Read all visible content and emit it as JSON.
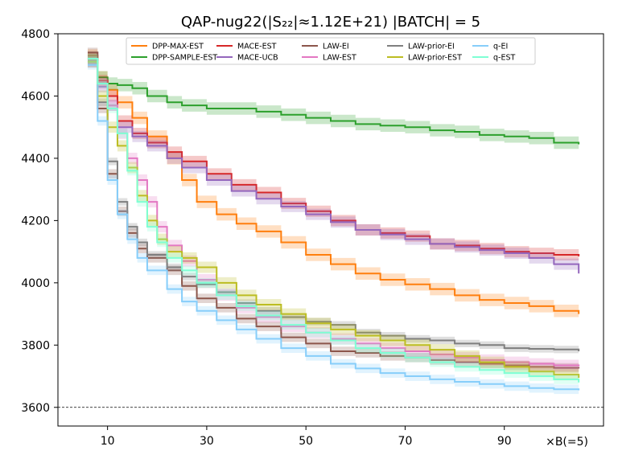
{
  "chart_data": {
    "type": "line",
    "title": "QAP-nug22(|S₂₂|≈1.12E+21) |BATCH| = 5",
    "xlabel": "",
    "ylabel": "",
    "x_unit_label": "×B(=5)",
    "xlim": [
      0,
      110
    ],
    "ylim": [
      3540,
      4800
    ],
    "xticks": [
      10,
      30,
      50,
      70,
      90
    ],
    "yticks": [
      3600,
      3800,
      4000,
      4200,
      4400,
      4600,
      4800
    ],
    "reference_line": 3600,
    "legend_position": "top",
    "series": [
      {
        "name": "DPP-MAX-EST",
        "color": "#ff7f0e",
        "x": [
          6,
          8,
          10,
          12,
          15,
          18,
          22,
          25,
          28,
          32,
          36,
          40,
          45,
          50,
          55,
          60,
          65,
          70,
          75,
          80,
          85,
          90,
          95,
          100,
          105
        ],
        "y": [
          4730,
          4660,
          4620,
          4580,
          4530,
          4470,
          4400,
          4330,
          4260,
          4220,
          4190,
          4165,
          4130,
          4090,
          4060,
          4030,
          4010,
          3995,
          3980,
          3960,
          3945,
          3935,
          3925,
          3910,
          3900
        ],
        "band": 20
      },
      {
        "name": "DPP-SAMPLE-EST",
        "color": "#2ca02c",
        "x": [
          6,
          8,
          10,
          12,
          15,
          18,
          22,
          25,
          30,
          40,
          45,
          50,
          55,
          60,
          65,
          70,
          75,
          80,
          85,
          90,
          95,
          100,
          105
        ],
        "y": [
          4720,
          4660,
          4640,
          4635,
          4625,
          4600,
          4580,
          4570,
          4560,
          4550,
          4540,
          4530,
          4520,
          4510,
          4505,
          4500,
          4490,
          4485,
          4475,
          4470,
          4465,
          4450,
          4445
        ],
        "band": 20
      },
      {
        "name": "MACE-EST",
        "color": "#d62728",
        "x": [
          6,
          8,
          10,
          12,
          15,
          18,
          22,
          25,
          30,
          35,
          40,
          45,
          50,
          55,
          60,
          65,
          70,
          75,
          80,
          85,
          90,
          95,
          100,
          105
        ],
        "y": [
          4720,
          4650,
          4600,
          4520,
          4480,
          4450,
          4420,
          4390,
          4350,
          4315,
          4290,
          4255,
          4230,
          4200,
          4170,
          4160,
          4150,
          4125,
          4120,
          4110,
          4100,
          4095,
          4090,
          4085
        ],
        "band": 18
      },
      {
        "name": "MACE-UCB",
        "color": "#9467bd",
        "x": [
          6,
          8,
          10,
          12,
          15,
          18,
          22,
          25,
          30,
          35,
          40,
          45,
          50,
          55,
          60,
          65,
          70,
          75,
          80,
          85,
          90,
          95,
          100,
          105
        ],
        "y": [
          4710,
          4630,
          4570,
          4500,
          4470,
          4440,
          4400,
          4370,
          4330,
          4295,
          4270,
          4245,
          4220,
          4195,
          4170,
          4155,
          4140,
          4125,
          4115,
          4105,
          4095,
          4080,
          4060,
          4030
        ],
        "band": 18
      },
      {
        "name": "LAW-EI",
        "color": "#8c564b",
        "x": [
          6,
          8,
          10,
          12,
          14,
          16,
          18,
          22,
          25,
          28,
          32,
          36,
          40,
          45,
          50,
          55,
          60,
          65,
          70,
          75,
          80,
          85,
          90,
          95,
          100,
          105
        ],
        "y": [
          4740,
          4560,
          4350,
          4230,
          4160,
          4110,
          4080,
          4040,
          3990,
          3950,
          3920,
          3885,
          3860,
          3825,
          3805,
          3780,
          3775,
          3765,
          3760,
          3752,
          3745,
          3740,
          3735,
          3730,
          3727,
          3725
        ],
        "band": 15
      },
      {
        "name": "LAW-EST",
        "color": "#e377c2",
        "x": [
          6,
          8,
          10,
          12,
          14,
          16,
          18,
          20,
          22,
          25,
          28,
          32,
          36,
          40,
          45,
          50,
          55,
          60,
          65,
          70,
          75,
          80,
          85,
          90,
          95,
          100,
          105
        ],
        "y": [
          4710,
          4640,
          4570,
          4480,
          4400,
          4330,
          4260,
          4180,
          4120,
          4070,
          4010,
          3960,
          3920,
          3890,
          3860,
          3840,
          3820,
          3805,
          3790,
          3780,
          3770,
          3760,
          3752,
          3745,
          3740,
          3735,
          3732
        ],
        "band": 18
      },
      {
        "name": "LAW-prior-EI",
        "color": "#7f7f7f",
        "x": [
          6,
          8,
          10,
          12,
          14,
          16,
          18,
          22,
          25,
          28,
          32,
          36,
          40,
          45,
          50,
          55,
          60,
          65,
          70,
          75,
          80,
          85,
          90,
          95,
          100,
          105
        ],
        "y": [
          4720,
          4580,
          4390,
          4260,
          4180,
          4130,
          4090,
          4050,
          4020,
          3995,
          3970,
          3935,
          3910,
          3890,
          3875,
          3865,
          3840,
          3830,
          3820,
          3815,
          3805,
          3800,
          3790,
          3788,
          3786,
          3780
        ],
        "band": 12
      },
      {
        "name": "LAW-prior-EST",
        "color": "#bcbd22",
        "x": [
          6,
          8,
          10,
          12,
          14,
          16,
          18,
          20,
          22,
          25,
          28,
          32,
          36,
          40,
          45,
          50,
          55,
          60,
          65,
          70,
          75,
          80,
          85,
          90,
          95,
          100,
          105
        ],
        "y": [
          4710,
          4600,
          4500,
          4440,
          4370,
          4280,
          4200,
          4140,
          4100,
          4080,
          4050,
          4000,
          3960,
          3930,
          3900,
          3870,
          3850,
          3830,
          3815,
          3800,
          3785,
          3765,
          3745,
          3730,
          3715,
          3705,
          3695
        ],
        "band": 18
      },
      {
        "name": "q-EI",
        "color": "#87cefa",
        "x": [
          6,
          8,
          10,
          12,
          14,
          16,
          18,
          22,
          25,
          28,
          32,
          36,
          40,
          45,
          50,
          55,
          60,
          65,
          70,
          75,
          80,
          85,
          90,
          95,
          100,
          105
        ],
        "y": [
          4700,
          4520,
          4330,
          4220,
          4140,
          4080,
          4040,
          3980,
          3940,
          3910,
          3880,
          3850,
          3820,
          3790,
          3765,
          3740,
          3725,
          3710,
          3700,
          3690,
          3682,
          3675,
          3668,
          3662,
          3658,
          3655
        ],
        "band": 15
      },
      {
        "name": "q-EST",
        "color": "#7fffd4",
        "x": [
          6,
          8,
          10,
          12,
          14,
          16,
          18,
          20,
          22,
          25,
          28,
          32,
          36,
          40,
          45,
          50,
          55,
          60,
          65,
          70,
          75,
          80,
          85,
          90,
          95,
          100,
          105
        ],
        "y": [
          4720,
          4640,
          4560,
          4480,
          4360,
          4260,
          4180,
          4130,
          4080,
          4040,
          4000,
          3960,
          3925,
          3895,
          3865,
          3840,
          3815,
          3790,
          3775,
          3760,
          3745,
          3730,
          3720,
          3710,
          3700,
          3690,
          3680
        ],
        "band": 15
      }
    ]
  }
}
